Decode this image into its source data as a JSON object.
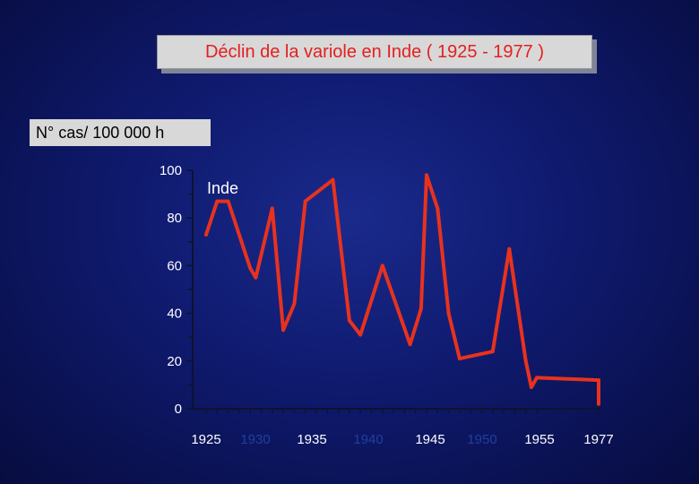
{
  "title": "Déclin de la variole en Inde ( 1925 - 1977 )",
  "ylabel": "N° cas/ 100 000 h",
  "colors": {
    "line": "#e8321e",
    "axis": "#0d1330",
    "tick_label": "#ffffff",
    "tick_label_muted": "#1f3fa0",
    "title_text": "#e41f1f"
  },
  "chart_data": {
    "type": "line",
    "title": "Déclin de la variole en Inde ( 1925 - 1977 )",
    "ylabel": "N° cas/ 100 000 h",
    "xlabel": "",
    "ylim": [
      0,
      100
    ],
    "y_ticks": [
      0,
      20,
      40,
      60,
      80,
      100
    ],
    "x_ticks": [
      {
        "label": "1925",
        "muted": false
      },
      {
        "label": "1930",
        "muted": true
      },
      {
        "label": "1935",
        "muted": false
      },
      {
        "label": "1940",
        "muted": true
      },
      {
        "label": "1945",
        "muted": false
      },
      {
        "label": "1950",
        "muted": true
      },
      {
        "label": "1955",
        "muted": false
      },
      {
        "label": "1977",
        "muted": false
      }
    ],
    "grid": false,
    "annotations": [
      {
        "text": "Inde"
      }
    ],
    "series": [
      {
        "name": "Inde",
        "x": [
          1925,
          1926,
          1927,
          1929,
          1929.5,
          1931,
          1932,
          1933,
          1934,
          1936.5,
          1938,
          1939,
          1941,
          1943.5,
          1944.5,
          1945,
          1946,
          1947,
          1948,
          1951,
          1952.5,
          1954,
          1954.5,
          1955,
          1959.5,
          1977
        ],
        "y": [
          73,
          87,
          87,
          59,
          55,
          84,
          33,
          44,
          87,
          96,
          37,
          31,
          60,
          27,
          42,
          98,
          84,
          40,
          21,
          24,
          67,
          20,
          9,
          13,
          12,
          2
        ]
      }
    ]
  }
}
